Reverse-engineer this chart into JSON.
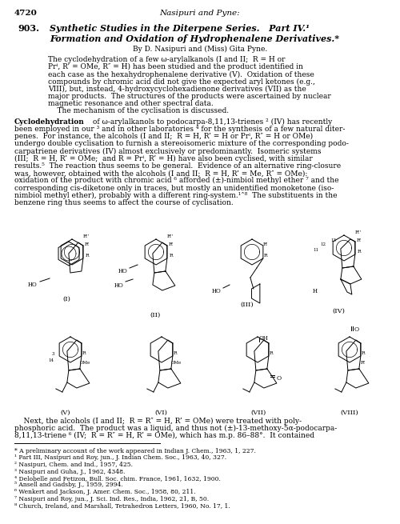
{
  "page_number": "4720",
  "header_center": "Nasipuri and Pyne:",
  "article_number": "903.",
  "title_line1": "Synthetic Studies in the Diterpene Series.   Part IV.¹",
  "title_line2": "Formation and Oxidation of Hydrophenalene Derivatives.*",
  "byline": "By D. Nasipuri and (Miss) Gita Pyne.",
  "abstract_lines": [
    "The cyclodehydration of a few ω-arylalkanols (I and II;  R = H or",
    "Prⁱ, R’ = OMe, R″ = H) has been studied and the product identified in",
    "each case as the hexahydrophenalene derivative (V).  Oxidation of these",
    "compounds by chromic acid did not give the expected aryl ketones (e.g.,",
    "VIII), but, instead, 4-hydroxycyclohexadienone derivatives (VII) as the",
    "major products.  The structures of the products were ascertained by nuclear",
    "magnetic resonance and other spectral data.",
    "    The mechanism of the cyclisation is discussed."
  ],
  "body_lines": [
    "Cyclodehydration of ω-arylalkanols to podocarpa-8,11,13-trienes ² (IV) has recently",
    "been employed in our ³ and in other laboratories ⁴ for the synthesis of a few natural diter-",
    "penes.  For instance, the alcohols (I and II;  R = H, R’ = H or Prⁱ, R″ = H or OMe)",
    "undergo double cyclisation to furnish a stereoisomeric mixture of the corresponding podo-",
    "carpatriene derivatives (IV) almost exclusively or predominantly.  Isomeric systems",
    "(III;  R = H, R’ = OMe;  and R = Prⁱ, R’ = H) have also been cyclised, with similar",
    "results.⁵  The reaction thus seems to be general.  Evidence of an alternative ring-closure",
    "was, however, obtained with the alcohols (I and II;  R = H, R’ = Me, R″ = OMe):",
    "oxidation of the product with chromic acid ⁶ afforded (±)-nimbiol methyl ether ⁷ and the",
    "corresponding cis-diketone only in traces, but mostly an unidentified monoketone (iso-",
    "nimbiol methyl ether), probably with a different ring-system.¹˄⁸  The substituents in the",
    "benzene ring thus seems to affect the course of cyclisation."
  ],
  "bottom_lines": [
    "    Next, the alcohols (I and II;  R = R″ = H, R’ = OMe) were treated with poly-",
    "phosphoric acid.  The product was a liquid, and thus not (±)-13-methoxy-5α-podocarpa-",
    "8,11,13-triene ⁶ (IV;  R = R″ = H, R’ = OMe), which has m.p. 86–88°.  It contained"
  ],
  "footnote_lines": [
    "* A preliminary account of the work appeared in Indian J. Chem., 1963, 1, 227.",
    "¹ Part III, Nasipuri and Roy, jun., J. Indian Chem. Soc., 1963, 40, 327.",
    "² Nasipuri, Chem. and Ind., 1957, 425.",
    "³ Nasipuri and Guha, J., 1962, 4348.",
    "⁴ Delobelle and Fetizon, Bull. Soc. chim. France, 1961, 1632, 1900.",
    "⁵ Ansell and Gadsby, J., 1959, 2994.",
    "⁶ Wenkert and Jackson, J. Amer. Chem. Soc., 1958, 80, 211.",
    "⁷ Nasipuri and Roy, jun., J. Sci. Ind. Res., India, 1962, 21, B, 50.",
    "⁸ Church, Ireland, and Marshall, Tetrahedron Letters, 1960, No. 17, 1."
  ],
  "background_color": "#ffffff"
}
